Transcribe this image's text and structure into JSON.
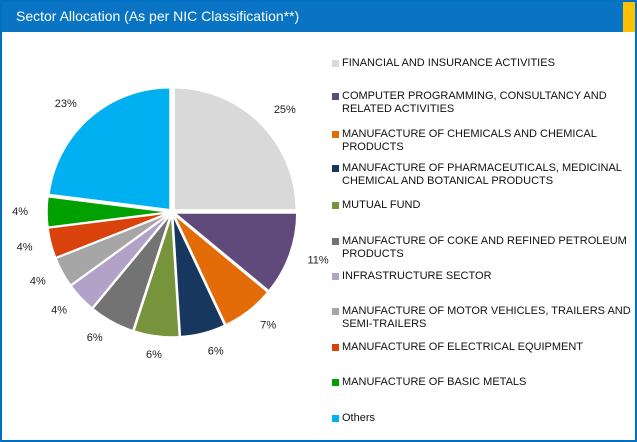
{
  "chart_data": {
    "type": "pie",
    "title": "Sector Allocation (As per NIC Classification**)",
    "categories": [
      "FINANCIAL AND INSURANCE ACTIVITIES",
      "COMPUTER PROGRAMMING, CONSULTANCY AND RELATED ACTIVITIES",
      "MANUFACTURE OF CHEMICALS AND CHEMICAL PRODUCTS",
      "MANUFACTURE OF PHARMACEUTICALS, MEDICINAL CHEMICAL AND BOTANICAL PRODUCTS",
      "MUTUAL FUND",
      "MANUFACTURE OF COKE AND REFINED PETROLEUM PRODUCTS",
      "INFRASTRUCTURE SECTOR",
      "MANUFACTURE OF MOTOR VEHICLES, TRAILERS AND SEMI-TRAILERS",
      "MANUFACTURE OF ELECTRICAL EQUIPMENT",
      "MANUFACTURE OF BASIC METALS",
      "Others"
    ],
    "values": [
      25,
      11,
      7,
      6,
      6,
      6,
      4,
      4,
      4,
      4,
      23
    ],
    "value_labels": [
      "25%",
      "11%",
      "7%",
      "6%",
      "6%",
      "6%",
      "4%",
      "4%",
      "4%",
      "4%",
      "23%"
    ],
    "colors": [
      "#d9d9d9",
      "#604a7b",
      "#e36c09",
      "#17375e",
      "#77933c",
      "#737373",
      "#b3a2c7",
      "#a6a6a6",
      "#d9420b",
      "#00a000",
      "#00b0f0"
    ]
  }
}
